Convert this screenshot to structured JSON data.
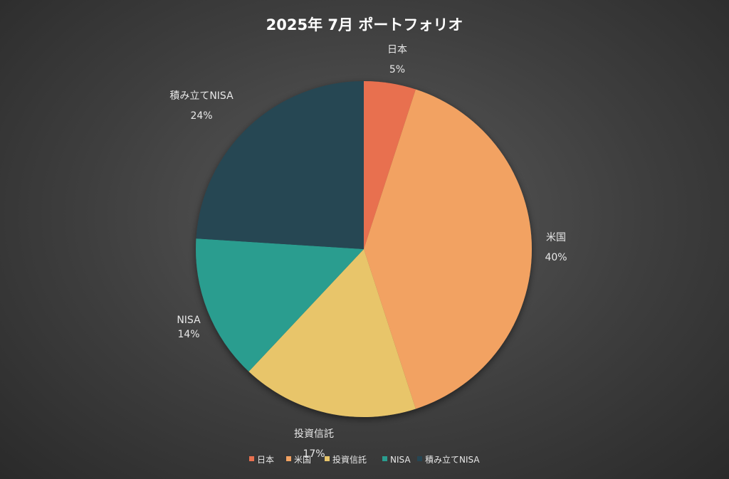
{
  "chart_data": {
    "type": "pie",
    "title": "2025年 7月 ポートフォリオ",
    "categories": [
      "日本",
      "米国",
      "投資信託",
      "NISA",
      "積み立てNISA"
    ],
    "values": [
      5,
      40,
      17,
      14,
      24
    ],
    "value_labels": [
      "5%",
      "40%",
      "17%",
      "14%",
      "24%"
    ],
    "colors": [
      "#E8704F",
      "#F2A262",
      "#E8C56A",
      "#2A9D8F",
      "#264653"
    ],
    "start_angle_deg": 0,
    "direction": "clockwise",
    "legend": {
      "position": "bottom",
      "entries": [
        "日本",
        "米国",
        "投資信託",
        "NISA",
        "積み立てNISA"
      ]
    }
  }
}
